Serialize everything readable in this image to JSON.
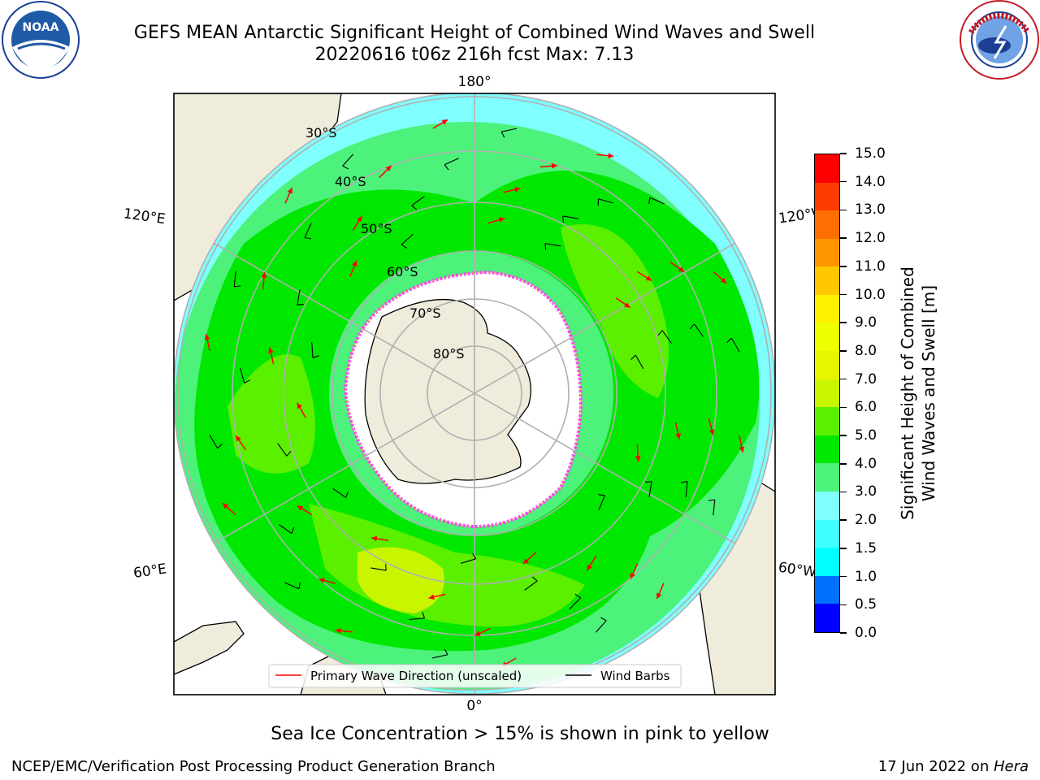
{
  "title": {
    "line1": "GEFS MEAN Antarctic Significant Height of Combined Wind Waves and Swell",
    "line2": "20220616 t06z 216h fcst   Max: 7.13"
  },
  "logos": {
    "left": {
      "name": "noaa-logo",
      "text": "NOAA",
      "ring_text": "NATIONAL OCEANIC AND ATMOSPHERIC ADMINISTRATION · U.S. DEPARTMENT OF COMMERCE"
    },
    "right": {
      "name": "nws-logo",
      "ring_text": "NATIONAL WEATHER SERVICE"
    }
  },
  "map": {
    "projection": "south-polar-stereographic",
    "longitude_labels": {
      "top": "180°",
      "bottom": "0°",
      "upper_left": "120°E",
      "lower_left": "60°E",
      "upper_right": "120°W",
      "lower_right": "60°W"
    },
    "latitude_labels": [
      "30°S",
      "40°S",
      "50°S",
      "60°S",
      "70°S",
      "80°S"
    ],
    "colors": {
      "land": "#efecdc",
      "sea_ice": "#ffffff",
      "swh_0_5": "#0000ff",
      "swh_1_5": "#00ffff",
      "swh_2": "#80ffff",
      "swh_3": "#4cf27a",
      "swh_4": "#00e800",
      "swh_5": "#5af000",
      "swh_6": "#c8f500",
      "swh_7": "#e8f500",
      "arrow": "#ff0000",
      "barb": "#000000",
      "ice_edge": "#ff40ff"
    }
  },
  "legend": {
    "items": [
      {
        "label": "Primary Wave Direction (unscaled)",
        "color": "#ff0000"
      },
      {
        "label": "Wind Barbs",
        "color": "#000000"
      }
    ]
  },
  "colorbar": {
    "label_line1": "Significant Height of Combined",
    "label_line2": "Wind Waves and Swell [m]",
    "ticks": [
      "0.0",
      "0.5",
      "1.0",
      "1.5",
      "2.0",
      "3.0",
      "4.0",
      "5.0",
      "6.0",
      "7.0",
      "8.0",
      "9.0",
      "10.0",
      "11.0",
      "12.0",
      "13.0",
      "14.0",
      "15.0"
    ],
    "colors": [
      "#0000ff",
      "#0070ff",
      "#00ffff",
      "#40ffff",
      "#80ffff",
      "#4cf27a",
      "#00e800",
      "#5af000",
      "#c8f500",
      "#e8f500",
      "#f0ff00",
      "#fff000",
      "#ffc800",
      "#ff9600",
      "#ff6e00",
      "#ff3c00",
      "#ff0000"
    ]
  },
  "footer": {
    "note": "Sea Ice Concentration > 15% is shown in pink to yellow",
    "left": "NCEP/EMC/Verification Post Processing Product Generation Branch",
    "right_prefix": "17 Jun 2022 on ",
    "right_machine": "Hera"
  }
}
